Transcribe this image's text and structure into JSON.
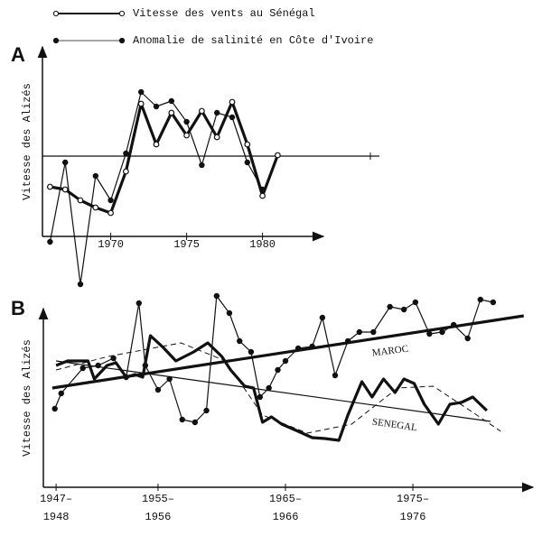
{
  "chart_data": [
    {
      "type": "line",
      "panel": "A",
      "y_label": "Vitesse des Alizés",
      "xlim": [
        1965.5,
        1983.5
      ],
      "ylim": [
        -4.5,
        5.5
      ],
      "xticks": [
        1970,
        1975,
        1980
      ],
      "zero_line": true,
      "x": [
        1966,
        1967,
        1968,
        1969,
        1970,
        1971,
        1972,
        1973,
        1974,
        1975,
        1976,
        1977,
        1978,
        1979,
        1980,
        1981
      ],
      "legend": "top",
      "series": [
        {
          "name": "Vitesse des vents au Sénégal",
          "color": "#111",
          "marker": "open",
          "style": "thick",
          "values": [
            -1.7,
            -1.85,
            -2.45,
            -2.85,
            -3.15,
            -0.85,
            2.9,
            0.65,
            2.4,
            1.15,
            2.5,
            1.05,
            3.0,
            0.65,
            -2.2,
            0.05
          ]
        },
        {
          "name": "Anomalie de salinité en Côte d'Ivoire",
          "color": "#111",
          "marker": "filled",
          "style": "thin",
          "values": [
            -4.75,
            -0.35,
            -7.1,
            -1.1,
            -2.45,
            0.15,
            3.55,
            2.75,
            3.05,
            1.9,
            -0.5,
            2.4,
            2.15,
            -0.35,
            -1.85,
            null
          ]
        }
      ]
    },
    {
      "type": "line",
      "panel": "B",
      "y_label": "Vitesse des Alizés",
      "xlim": [
        1946,
        1984
      ],
      "ylim": [
        0,
        10
      ],
      "xticks": [
        {
          "value": 1947,
          "label": [
            "1947–",
            "1948"
          ]
        },
        {
          "value": 1955,
          "label": [
            "1955–",
            "1956"
          ]
        },
        {
          "value": 1965,
          "label": [
            "1965–",
            "1966"
          ]
        },
        {
          "value": 1975,
          "label": [
            "1975–",
            "1976"
          ]
        }
      ],
      "legend": "inline",
      "series": [
        {
          "name": "MAROC",
          "color": "#111",
          "marker": "filled",
          "style": "thin",
          "x": [
            1946.9,
            1947.4,
            1949.1,
            1950.3,
            1951.5,
            1952.5,
            1953.5,
            1954.0,
            1955.0,
            1955.9,
            1956.9,
            1957.9,
            1958.8,
            1959.6,
            1960.6,
            1961.4,
            1962.3,
            1963.0,
            1963.7,
            1964.4,
            1965.0,
            1966.0,
            1967.1,
            1967.9,
            1968.9,
            1969.9,
            1970.8,
            1971.9,
            1973.2,
            1974.3,
            1975.2,
            1976.3,
            1977.3,
            1978.2,
            1979.3,
            1980.3,
            1981.3
          ],
          "values": [
            4.35,
            5.2,
            6.6,
            6.75,
            7.15,
            6.1,
            10.2,
            6.75,
            5.4,
            6.0,
            3.75,
            3.6,
            4.25,
            10.6,
            9.65,
            8.1,
            7.5,
            5.0,
            5.5,
            6.5,
            7.0,
            7.7,
            7.8,
            9.4,
            6.2,
            8.1,
            8.6,
            8.6,
            10.0,
            9.85,
            10.25,
            8.5,
            8.6,
            9.0,
            8.25,
            10.4,
            10.25
          ]
        },
        {
          "name": "SENEGAL",
          "color": "#111",
          "marker": "none",
          "style": "thick",
          "x": [
            1947.0,
            1947.9,
            1949.5,
            1950.0,
            1951.0,
            1951.7,
            1952.5,
            1953.2,
            1953.8,
            1954.4,
            1955.4,
            1956.4,
            1957.8,
            1958.9,
            1960.0,
            1960.7,
            1961.8,
            1962.5,
            1963.2,
            1963.9,
            1964.7,
            1966.0,
            1967.1,
            1968.1,
            1969.2,
            1969.9,
            1971.0,
            1971.8,
            1972.7,
            1973.6,
            1974.3,
            1975.1,
            1975.9,
            1977.0,
            1977.9,
            1978.8,
            1979.7,
            1980.8
          ],
          "values": [
            6.75,
            7.0,
            7.0,
            6.0,
            6.75,
            6.9,
            6.1,
            6.25,
            6.1,
            8.4,
            7.75,
            7.0,
            7.5,
            8.0,
            7.25,
            6.5,
            5.6,
            5.5,
            3.6,
            3.9,
            3.5,
            3.1,
            2.75,
            2.7,
            2.6,
            4.0,
            5.85,
            5.0,
            6.0,
            5.25,
            6.0,
            5.75,
            4.6,
            3.5,
            4.6,
            4.7,
            5.0,
            4.25
          ]
        }
      ],
      "lines": [
        {
          "style": "thick",
          "x": [
            1946.7,
            1983.7
          ],
          "values": [
            5.5,
            9.5
          ]
        },
        {
          "style": "thin",
          "x": [
            1947.0,
            1981.1
          ],
          "values": [
            7.0,
            3.65
          ]
        },
        {
          "style": "dashed",
          "x": [
            1947.0,
            1951.1,
            1956.8,
            1960.3,
            1963.2,
            1966.7,
            1970.2,
            1973.8,
            1976.6,
            1979.5,
            1981.9
          ],
          "values": [
            6.5,
            7.25,
            8.0,
            7.0,
            4.0,
            3.0,
            3.5,
            5.5,
            5.6,
            4.25,
            3.1
          ]
        }
      ]
    }
  ]
}
